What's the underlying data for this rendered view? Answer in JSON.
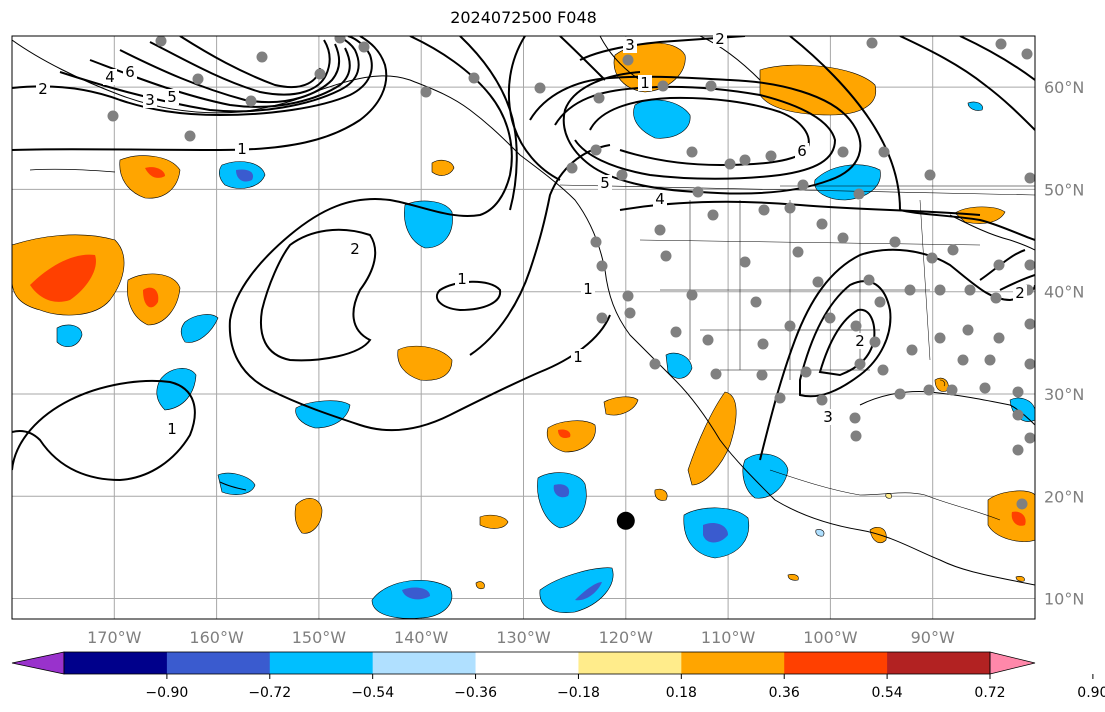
{
  "title": "2024072500 F048",
  "map": {
    "projection": "PlateCarree",
    "extent_lon": [
      -180,
      -80
    ],
    "extent_lat": [
      8,
      65
    ],
    "lon_labels": [
      "170°W",
      "160°W",
      "150°W",
      "140°W",
      "130°W",
      "120°W",
      "110°W",
      "100°W",
      "90°W"
    ],
    "lat_labels": [
      "10°N",
      "20°N",
      "30°N",
      "40°N",
      "50°N",
      "60°N"
    ],
    "grid": true,
    "gridline_color": "#9e9e9e",
    "storm_marker": {
      "lon": -120,
      "lat": 17.6,
      "color": "#000000"
    }
  },
  "contours": {
    "color": "#000000",
    "levels": [
      1,
      2,
      3,
      4,
      5,
      6
    ],
    "labels": [
      "2",
      "6",
      "4",
      "3",
      "5",
      "1",
      "3",
      "2",
      "1",
      "6",
      "5",
      "4",
      "2",
      "1",
      "1",
      "1",
      "2",
      "3",
      "1",
      "2"
    ]
  },
  "colorbar": {
    "ticks": [
      "−0.90",
      "−0.72",
      "−0.54",
      "−0.36",
      "−0.18",
      "0.18",
      "0.36",
      "0.54",
      "0.72",
      "0.90"
    ],
    "colors": [
      "#9932cc",
      "#00008b",
      "#3a5bcf",
      "#00bfff",
      "#b0e0ff",
      "#ffffff",
      "#ffec8b",
      "#ffa500",
      "#ff4000",
      "#b22222",
      "#ff88aa"
    ],
    "extend": "both"
  },
  "station_dots": {
    "color": "#808080"
  }
}
